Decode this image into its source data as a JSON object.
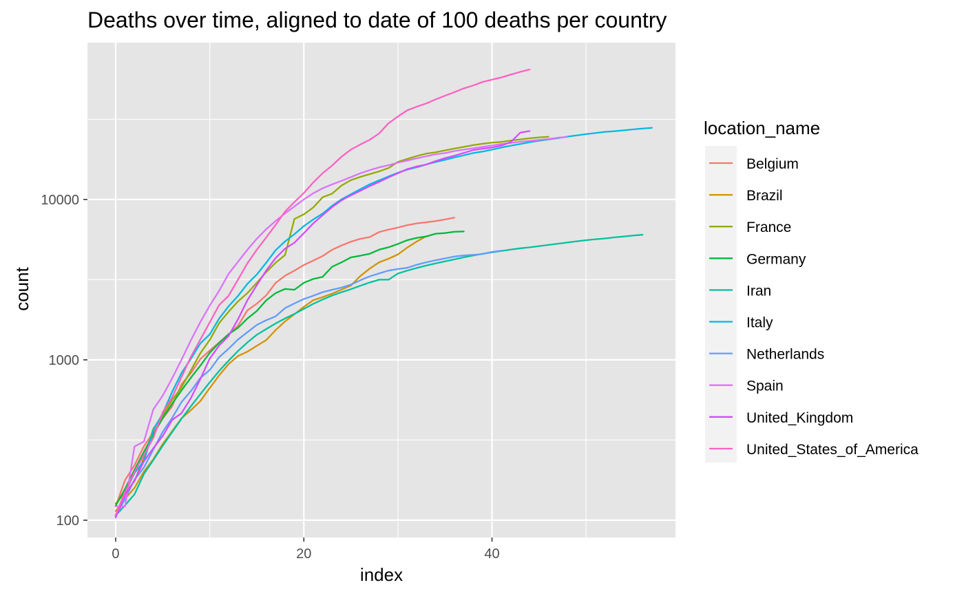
{
  "chart_data": {
    "type": "line",
    "title": "Deaths over time, aligned to date of 100 deaths per country",
    "xlabel": "index",
    "ylabel": "count",
    "xlim": [
      -3,
      59.5
    ],
    "ylim": [
      78,
      95000
    ],
    "y_scale": "log10",
    "x_ticks": [
      0,
      20,
      40
    ],
    "x_tick_labels": [
      "0",
      "20",
      "40"
    ],
    "y_ticks": [
      100,
      1000,
      10000
    ],
    "y_tick_labels": [
      "100",
      "1000",
      "10000"
    ],
    "background": "#e5e5e5",
    "grid": true,
    "legend": {
      "title": "location_name",
      "placement": "right"
    },
    "series": [
      {
        "name": "Belgium",
        "color": "#F8766D",
        "values": [
          122,
          178,
          220,
          289,
          353,
          431,
          513,
          705,
          828,
          1011,
          1143,
          1283,
          1447,
          1632,
          2035,
          2240,
          2523,
          3019,
          3346,
          3600,
          3903,
          4157,
          4440,
          4857,
          5163,
          5453,
          5683,
          5828,
          6262,
          6490,
          6679,
          6917,
          7094,
          7207,
          7331,
          7501,
          7703
        ]
      },
      {
        "name": "Brazil",
        "color": "#D39200",
        "values": [
          114,
          136,
          159,
          201,
          240,
          299,
          359,
          432,
          486,
          553,
          667,
          800,
          941,
          1056,
          1124,
          1223,
          1328,
          1532,
          1736,
          1924,
          2141,
          2354,
          2462,
          2587,
          2741,
          2906,
          3331,
          3704,
          4057,
          4271,
          4543,
          5017,
          5466,
          5901
        ]
      },
      {
        "name": "France",
        "color": "#93AA00",
        "values": [
          127,
          148,
          175,
          244,
          372,
          450,
          562,
          674,
          860,
          1100,
          1331,
          1696,
          1995,
          2314,
          2606,
          3024,
          3523,
          4032,
          4503,
          7560,
          8078,
          8911,
          10328,
          10869,
          12210,
          13197,
          13832,
          14393,
          14967,
          15712,
          17148,
          17901,
          18661,
          19303,
          19694,
          20240,
          20765,
          21296,
          21825,
          22245,
          22614,
          22856,
          23293,
          23660,
          24087,
          24376,
          24594
        ]
      },
      {
        "name": "Germany",
        "color": "#00BA38",
        "values": [
          123,
          157,
          206,
          267,
          342,
          433,
          533,
          645,
          775,
          920,
          1107,
          1275,
          1444,
          1584,
          1810,
          2016,
          2349,
          2607,
          2767,
          2736,
          3022,
          3194,
          3294,
          3804,
          4052,
          4352,
          4459,
          4586,
          4862,
          5033,
          5279,
          5575,
          5760,
          5877,
          6115,
          6175,
          6288,
          6317
        ]
      },
      {
        "name": "Iran",
        "color": "#00C19F",
        "values": [
          107,
          124,
          145,
          194,
          237,
          291,
          354,
          429,
          514,
          611,
          724,
          853,
          988,
          1135,
          1284,
          1433,
          1556,
          1685,
          1812,
          1934,
          2077,
          2234,
          2378,
          2517,
          2640,
          2757,
          2898,
          3036,
          3160,
          3160,
          3452,
          3603,
          3739,
          3872,
          3993,
          4110,
          4232,
          4357,
          4474,
          4585,
          4683,
          4777,
          4869,
          4958,
          5031,
          5118,
          5209,
          5297,
          5391,
          5481,
          5574,
          5650,
          5710,
          5806,
          5877,
          5957,
          6028
        ]
      },
      {
        "name": "Italy",
        "color": "#00B9E3",
        "values": [
          107,
          148,
          197,
          233,
          366,
          463,
          631,
          827,
          1016,
          1266,
          1441,
          1809,
          2158,
          2503,
          2978,
          3405,
          4032,
          4825,
          5476,
          6077,
          6820,
          7503,
          8165,
          9134,
          10023,
          10779,
          11591,
          12428,
          13155,
          13915,
          14681,
          15362,
          15887,
          16523,
          17127,
          17669,
          18279,
          18849,
          19468,
          19899,
          20465,
          21067,
          21645,
          22170,
          22745,
          23227,
          23660,
          24114,
          24648,
          25085,
          25549,
          25969,
          26384,
          26644,
          26977,
          27359,
          27682,
          27967
        ]
      },
      {
        "name": "Netherlands",
        "color": "#619CFF",
        "values": [
          106,
          136,
          179,
          213,
          276,
          356,
          434,
          546,
          639,
          771,
          864,
          1039,
          1173,
          1339,
          1487,
          1651,
          1766,
          1867,
          2101,
          2248,
          2396,
          2511,
          2643,
          2737,
          2823,
          2945,
          3134,
          3315,
          3459,
          3601,
          3684,
          3751,
          3916,
          4054,
          4177,
          4289,
          4409,
          4475,
          4518,
          4566,
          4711,
          4795
        ]
      },
      {
        "name": "Spain",
        "color": "#DB72FB",
        "values": [
          122,
          122,
          288,
          309,
          491,
          598,
          767,
          1002,
          1326,
          1720,
          2182,
          2696,
          3434,
          4089,
          4858,
          5690,
          6528,
          7340,
          8189,
          9053,
          10003,
          10935,
          11744,
          12418,
          13055,
          13798,
          14555,
          15238,
          15843,
          16353,
          16972,
          17489,
          18056,
          18579,
          19130,
          19478,
          20043,
          20453,
          20852,
          21282,
          21717,
          22157,
          22524,
          22902,
          23190,
          23521,
          23822,
          24275,
          24543
        ]
      },
      {
        "name": "United_Kingdom",
        "color": "#D54BFF",
        "values": [
          104,
          144,
          177,
          233,
          281,
          335,
          422,
          465,
          578,
          759,
          1019,
          1228,
          1408,
          1789,
          2352,
          2921,
          3605,
          4313,
          4934,
          5373,
          6159,
          7097,
          7978,
          8958,
          9875,
          10612,
          11329,
          12107,
          12868,
          13729,
          14576,
          15464,
          16060,
          16509,
          17337,
          18100,
          18738,
          19506,
          20319,
          20732,
          21092,
          21678,
          22792,
          26097,
          26711
        ]
      },
      {
        "name": "United_States_of_America",
        "color": "#FF61C3",
        "values": [
          108,
          150,
          200,
          255,
          326,
          471,
          583,
          782,
          1046,
          1339,
          1714,
          2196,
          2509,
          3161,
          4000,
          4860,
          5791,
          6950,
          8407,
          9638,
          10971,
          12764,
          14584,
          16264,
          18469,
          20466,
          22019,
          23554,
          25789,
          29877,
          32916,
          35981,
          37882,
          39686,
          42068,
          44357,
          46665,
          49256,
          51386,
          54015,
          55844,
          57666,
          60094,
          62470,
          64663
        ]
      }
    ]
  }
}
